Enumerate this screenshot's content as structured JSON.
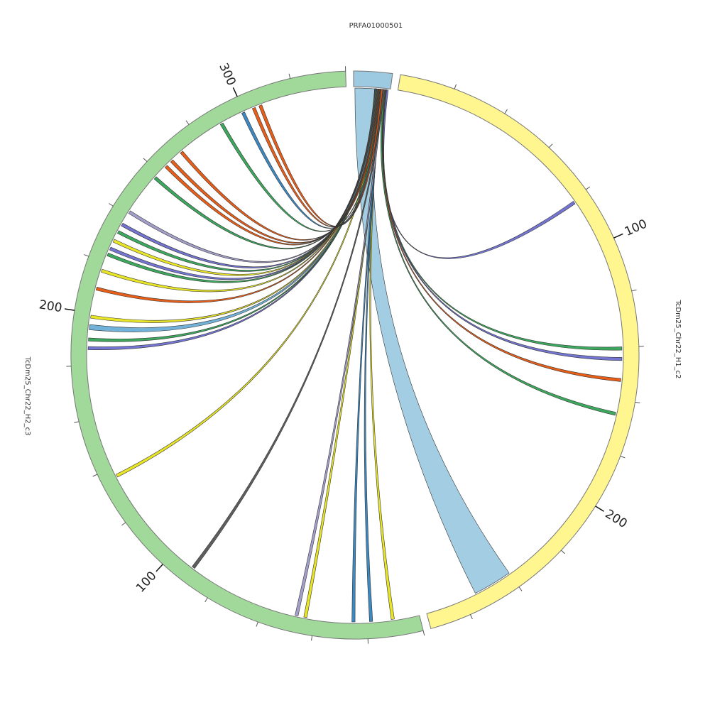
{
  "chart_data": {
    "type": "chord",
    "segments": [
      {
        "name": "PRFA01000501",
        "color": "#9ecae1",
        "length": 14,
        "ticks": [],
        "minor_ticks": []
      },
      {
        "name": "TcDm25_Chr22_H1_c2",
        "color": "#fff68f",
        "length": 275,
        "ticks": [
          100,
          200
        ],
        "minor_ticks": [
          20,
          40,
          60,
          80,
          120,
          140,
          160,
          180,
          220,
          240,
          260
        ]
      },
      {
        "name": "TcDm25_Chr22_H2_c3",
        "color": "#a1d99b",
        "length": 340,
        "ticks": [
          100,
          200,
          300
        ],
        "minor_ticks": [
          0,
          20,
          40,
          60,
          80,
          120,
          140,
          160,
          180,
          220,
          240,
          260,
          280,
          320,
          340
        ]
      }
    ],
    "links": [
      {
        "target_segment": 1,
        "source": [
          0.5,
          8
        ],
        "target": [
          240,
          255
        ],
        "color": "#9ecae1"
      },
      {
        "target_segment": 1,
        "source": [
          12.5,
          13.2
        ],
        "target": [
          80.8,
          82
        ],
        "color": "#6b6ecf"
      },
      {
        "target_segment": 1,
        "source": [
          12,
          12.6
        ],
        "target": [
          140,
          141.2
        ],
        "color": "#31a354"
      },
      {
        "target_segment": 1,
        "source": [
          11.8,
          12.4
        ],
        "target": [
          144,
          145.2
        ],
        "color": "#6b6ecf"
      },
      {
        "target_segment": 1,
        "source": [
          11.6,
          12.2
        ],
        "target": [
          152,
          153.2
        ],
        "color": "#e6550d"
      },
      {
        "target_segment": 1,
        "source": [
          11.4,
          12
        ],
        "target": [
          165,
          166.2
        ],
        "color": "#31a354"
      },
      {
        "target_segment": 2,
        "source": [
          10,
          10.6
        ],
        "target": [
          9.6,
          10.8
        ],
        "color": "#e7e31a"
      },
      {
        "target_segment": 2,
        "source": [
          10.3,
          10.9
        ],
        "target": [
          17.9,
          19.1
        ],
        "color": "#3182bd"
      },
      {
        "target_segment": 2,
        "source": [
          10.5,
          11.1
        ],
        "target": [
          24.6,
          25.8
        ],
        "color": "#3182bd"
      },
      {
        "target_segment": 2,
        "source": [
          10.8,
          11.4
        ],
        "target": [
          43,
          44.2
        ],
        "color": "#e7e31a"
      },
      {
        "target_segment": 2,
        "source": [
          11,
          11.6
        ],
        "target": [
          46.4,
          47.6
        ],
        "color": "#9e9ac8"
      },
      {
        "target_segment": 2,
        "source": [
          11.2,
          11.8
        ],
        "target": [
          90,
          91.2
        ],
        "color": "#555555"
      },
      {
        "target_segment": 2,
        "source": [
          9.5,
          10.1
        ],
        "target": [
          135.8,
          137
        ],
        "color": "#e7e31a"
      },
      {
        "target_segment": 2,
        "source": [
          9,
          9.6
        ],
        "target": [
          186,
          187.2
        ],
        "color": "#6b6ecf"
      },
      {
        "target_segment": 2,
        "source": [
          9.2,
          9.8
        ],
        "target": [
          189.3,
          190.5
        ],
        "color": "#31a354"
      },
      {
        "target_segment": 2,
        "source": [
          8.8,
          9.4
        ],
        "target": [
          193.6,
          195.6
        ],
        "color": "#6baed6"
      },
      {
        "target_segment": 2,
        "source": [
          8.6,
          9.2
        ],
        "target": [
          198,
          199.2
        ],
        "color": "#e7e31a"
      },
      {
        "target_segment": 2,
        "source": [
          8.4,
          9
        ],
        "target": [
          208.9,
          210.1
        ],
        "color": "#e6550d"
      },
      {
        "target_segment": 2,
        "source": [
          8.2,
          8.8
        ],
        "target": [
          216,
          217.2
        ],
        "color": "#e7e31a"
      },
      {
        "target_segment": 2,
        "source": [
          8,
          8.6
        ],
        "target": [
          222.6,
          223.8
        ],
        "color": "#31a354"
      },
      {
        "target_segment": 2,
        "source": [
          8.1,
          8.7
        ],
        "target": [
          225,
          226.2
        ],
        "color": "#6b6ecf"
      },
      {
        "target_segment": 2,
        "source": [
          8.3,
          8.9
        ],
        "target": [
          228.3,
          229.5
        ],
        "color": "#e7e31a"
      },
      {
        "target_segment": 2,
        "source": [
          8.5,
          9.1
        ],
        "target": [
          232,
          233.2
        ],
        "color": "#31a354"
      },
      {
        "target_segment": 2,
        "source": [
          8.7,
          9.3
        ],
        "target": [
          235.2,
          236.4
        ],
        "color": "#6b6ecf"
      },
      {
        "target_segment": 2,
        "source": [
          8.9,
          9.5
        ],
        "target": [
          240.7,
          241.9
        ],
        "color": "#9e9ac8"
      },
      {
        "target_segment": 2,
        "source": [
          9.1,
          9.7
        ],
        "target": [
          257,
          258.2
        ],
        "color": "#31a354"
      },
      {
        "target_segment": 2,
        "source": [
          9.3,
          9.9
        ],
        "target": [
          263,
          264.2
        ],
        "color": "#e6550d"
      },
      {
        "target_segment": 2,
        "source": [
          9.5,
          10.1
        ],
        "target": [
          266,
          267.2
        ],
        "color": "#e6550d"
      },
      {
        "target_segment": 2,
        "source": [
          9.7,
          10.3
        ],
        "target": [
          271,
          272.2
        ],
        "color": "#e6550d"
      },
      {
        "target_segment": 2,
        "source": [
          9.9,
          10.5
        ],
        "target": [
          289.7,
          290.9
        ],
        "color": "#31a354"
      },
      {
        "target_segment": 2,
        "source": [
          10.1,
          10.7
        ],
        "target": [
          298.9,
          300.1
        ],
        "color": "#3182bd"
      },
      {
        "target_segment": 2,
        "source": [
          10.3,
          10.9
        ],
        "target": [
          303.3,
          304.5
        ],
        "color": "#e6550d"
      },
      {
        "target_segment": 2,
        "source": [
          10.5,
          11.1
        ],
        "target": [
          306,
          307.2
        ],
        "color": "#e6550d"
      }
    ]
  }
}
